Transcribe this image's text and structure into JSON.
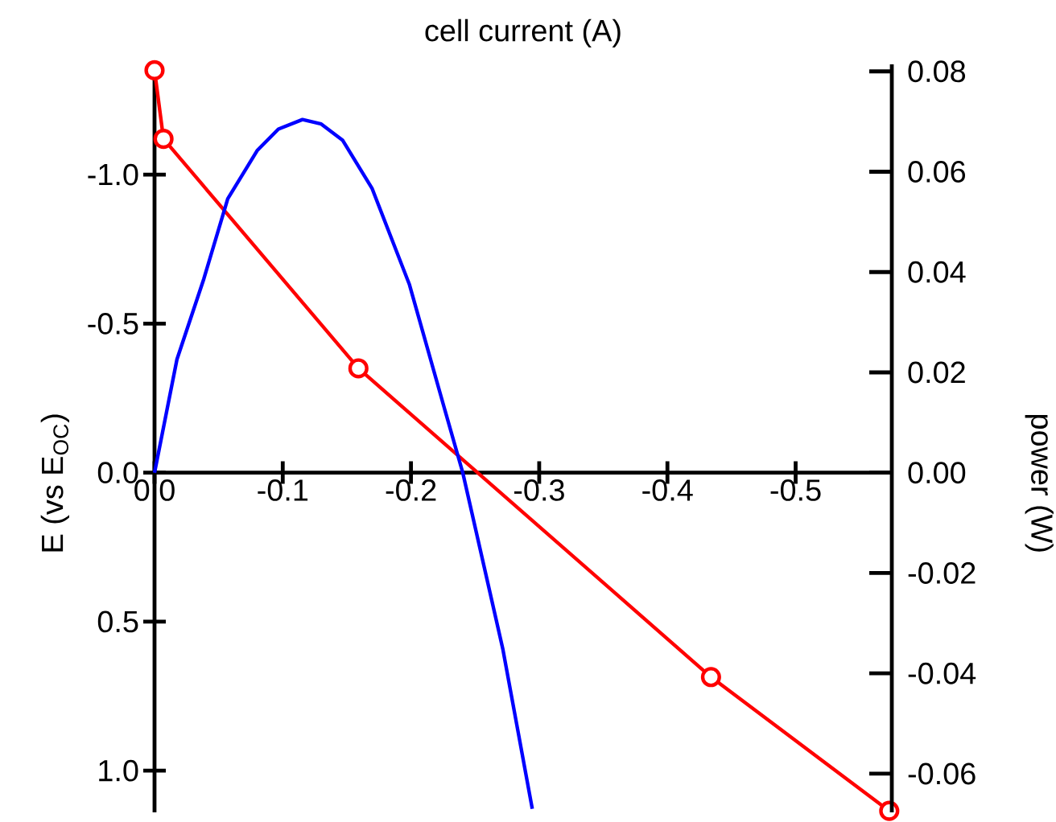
{
  "chart_data": {
    "type": "line",
    "xlabel": "cell current (A)",
    "ylabel": "E (vs E$_{OC}$)",
    "y2label": "power (W)",
    "xlim": [
      0,
      -0.575
    ],
    "xticks": [
      {
        "value": 0,
        "label": "0.0"
      },
      {
        "value": -0.1,
        "label": "-0.1"
      },
      {
        "value": -0.2,
        "label": "-0.2"
      },
      {
        "value": -0.3,
        "label": "-0.3"
      },
      {
        "value": -0.4,
        "label": "-0.4"
      },
      {
        "value": -0.5,
        "label": "-0.5"
      }
    ],
    "ylim": [
      1.14,
      -1.37
    ],
    "yticks": [
      {
        "value": -1.0,
        "label": "-1.0"
      },
      {
        "value": -0.5,
        "label": "-0.5"
      },
      {
        "value": 0,
        "label": "0.0"
      },
      {
        "value": 0.5,
        "label": "0.5"
      },
      {
        "value": 1.0,
        "label": "1.0"
      }
    ],
    "y2lim": [
      -0.0677,
      0.0814
    ],
    "y2ticks": [
      {
        "value": 0.08,
        "label": "0.08"
      },
      {
        "value": 0.06,
        "label": "0.06"
      },
      {
        "value": 0.04,
        "label": "0.04"
      },
      {
        "value": 0.02,
        "label": "0.02"
      },
      {
        "value": 0,
        "label": "0.00"
      },
      {
        "value": -0.02,
        "label": "-0.02"
      },
      {
        "value": -0.04,
        "label": "-0.04"
      },
      {
        "value": -0.06,
        "label": "-0.06"
      }
    ],
    "series": [
      {
        "color": "#ff0000",
        "marker": "circle",
        "x": [
          0,
          -0.007,
          -0.159,
          -0.434,
          -0.573
        ],
        "values": [
          -1.35,
          -1.12,
          -0.35,
          0.686,
          1.135
        ]
      },
      {
        "color": "#0000ff",
        "marker": "none",
        "axis": "y2",
        "x": [
          0,
          -0.0175,
          -0.0384,
          -0.0571,
          -0.08,
          -0.0966,
          -0.1154,
          -0.13,
          -0.1466,
          -0.1696,
          -0.1988,
          -0.226,
          -0.2404,
          -0.2716,
          -0.2946
        ],
        "values": [
          0,
          0.0226,
          0.0386,
          0.0546,
          0.0642,
          0.0685,
          0.0704,
          0.0695,
          0.0663,
          0.0567,
          0.0375,
          0.0129,
          0,
          -0.0351,
          -0.067
        ]
      }
    ]
  }
}
